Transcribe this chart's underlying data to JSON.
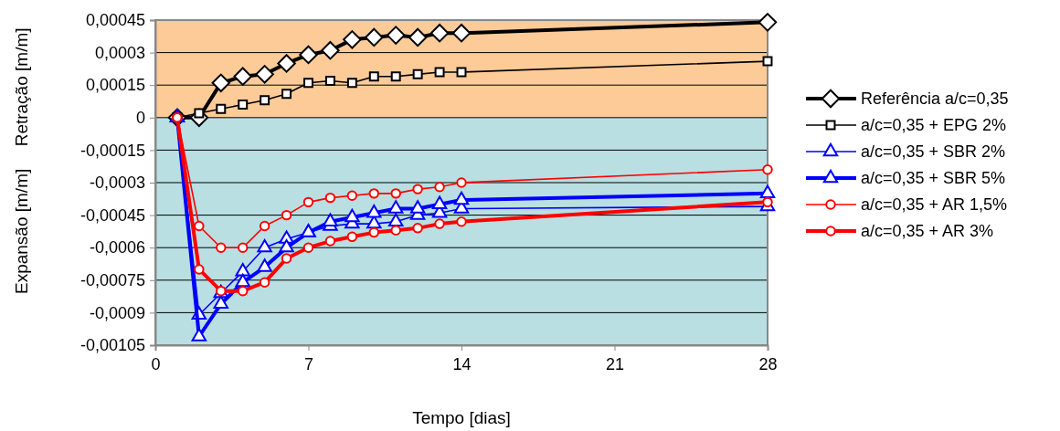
{
  "chart_data": {
    "type": "line",
    "xlabel": "Tempo [dias]",
    "ylabel": "Retração [m/m]",
    "annotations": [
      "Expansão [m/m]"
    ],
    "x": [
      1,
      2,
      3,
      4,
      5,
      6,
      7,
      8,
      9,
      10,
      11,
      12,
      13,
      14,
      28
    ],
    "xlim": [
      0,
      28
    ],
    "xticks": [
      0,
      7,
      14,
      21,
      28
    ],
    "ylim": [
      -0.00105,
      0.00045
    ],
    "yticks": [
      {
        "value": 0.00045,
        "label": "0,00045"
      },
      {
        "value": 0.0003,
        "label": "0,0003"
      },
      {
        "value": 0.00015,
        "label": "0,00015"
      },
      {
        "value": 0,
        "label": "0"
      },
      {
        "value": -0.00015,
        "label": "-0,00015"
      },
      {
        "value": -0.0003,
        "label": "-0,0003"
      },
      {
        "value": -0.00045,
        "label": "-0,00045"
      },
      {
        "value": -0.0006,
        "label": "-0,0006"
      },
      {
        "value": -0.00075,
        "label": "-0,00075"
      },
      {
        "value": -0.0009,
        "label": "-0,0009"
      },
      {
        "value": -0.00105,
        "label": "-0,00105"
      }
    ],
    "grid": "y",
    "legend": "right",
    "line_style": "solid",
    "bands": [
      {
        "axis": "y",
        "from": 0,
        "to": 0.00045,
        "color": "#fdcb98"
      },
      {
        "axis": "y",
        "from": -0.00105,
        "to": 0,
        "color": "#b9dfe2"
      }
    ],
    "series": [
      {
        "name": "Referência a/c=0,35",
        "color": "#000000",
        "marker": "diamond",
        "values": [
          0,
          0,
          0.00016,
          0.00019,
          0.0002,
          0.00025,
          0.00029,
          0.00031,
          0.00036,
          0.00037,
          0.00038,
          0.00037,
          0.00039,
          0.00039,
          0.00044
        ]
      },
      {
        "name": "a/c=0,35 + EPG 2%",
        "color": "#000000",
        "marker": "square",
        "values": [
          0,
          2e-05,
          4e-05,
          6e-05,
          8e-05,
          0.00011,
          0.00016,
          0.00017,
          0.00016,
          0.00019,
          0.00019,
          0.0002,
          0.00021,
          0.00021,
          0.00026
        ]
      },
      {
        "name": "a/c=0,35 + SBR 2%",
        "color": "#0000ff",
        "marker": "triangle",
        "values": [
          0,
          -0.00091,
          -0.00081,
          -0.00071,
          -0.0006,
          -0.00056,
          -0.00053,
          -0.0005,
          -0.00049,
          -0.00049,
          -0.00048,
          -0.00045,
          -0.00044,
          -0.00042,
          -0.00041
        ]
      },
      {
        "name": "a/c=0,35 + SBR 5%",
        "color": "#0000ff",
        "marker": "triangle",
        "values": [
          0,
          -0.00101,
          -0.00086,
          -0.00076,
          -0.00069,
          -0.0006,
          -0.00053,
          -0.00048,
          -0.00046,
          -0.00044,
          -0.00042,
          -0.00042,
          -0.0004,
          -0.00038,
          -0.00035
        ]
      },
      {
        "name": "a/c=0,35 + AR 1,5%",
        "color": "#ff0000",
        "marker": "circle",
        "values": [
          0,
          -0.0005,
          -0.0006,
          -0.0006,
          -0.0005,
          -0.00045,
          -0.00039,
          -0.00037,
          -0.00036,
          -0.00035,
          -0.00035,
          -0.00033,
          -0.00032,
          -0.0003,
          -0.00024
        ]
      },
      {
        "name": "a/c=0,35 + AR 3%",
        "color": "#ff0000",
        "marker": "circle",
        "values": [
          0,
          -0.0007,
          -0.0008,
          -0.0008,
          -0.00076,
          -0.00065,
          -0.0006,
          -0.00057,
          -0.00055,
          -0.00053,
          -0.00052,
          -0.00051,
          -0.00049,
          -0.00048,
          -0.00039
        ]
      }
    ]
  }
}
